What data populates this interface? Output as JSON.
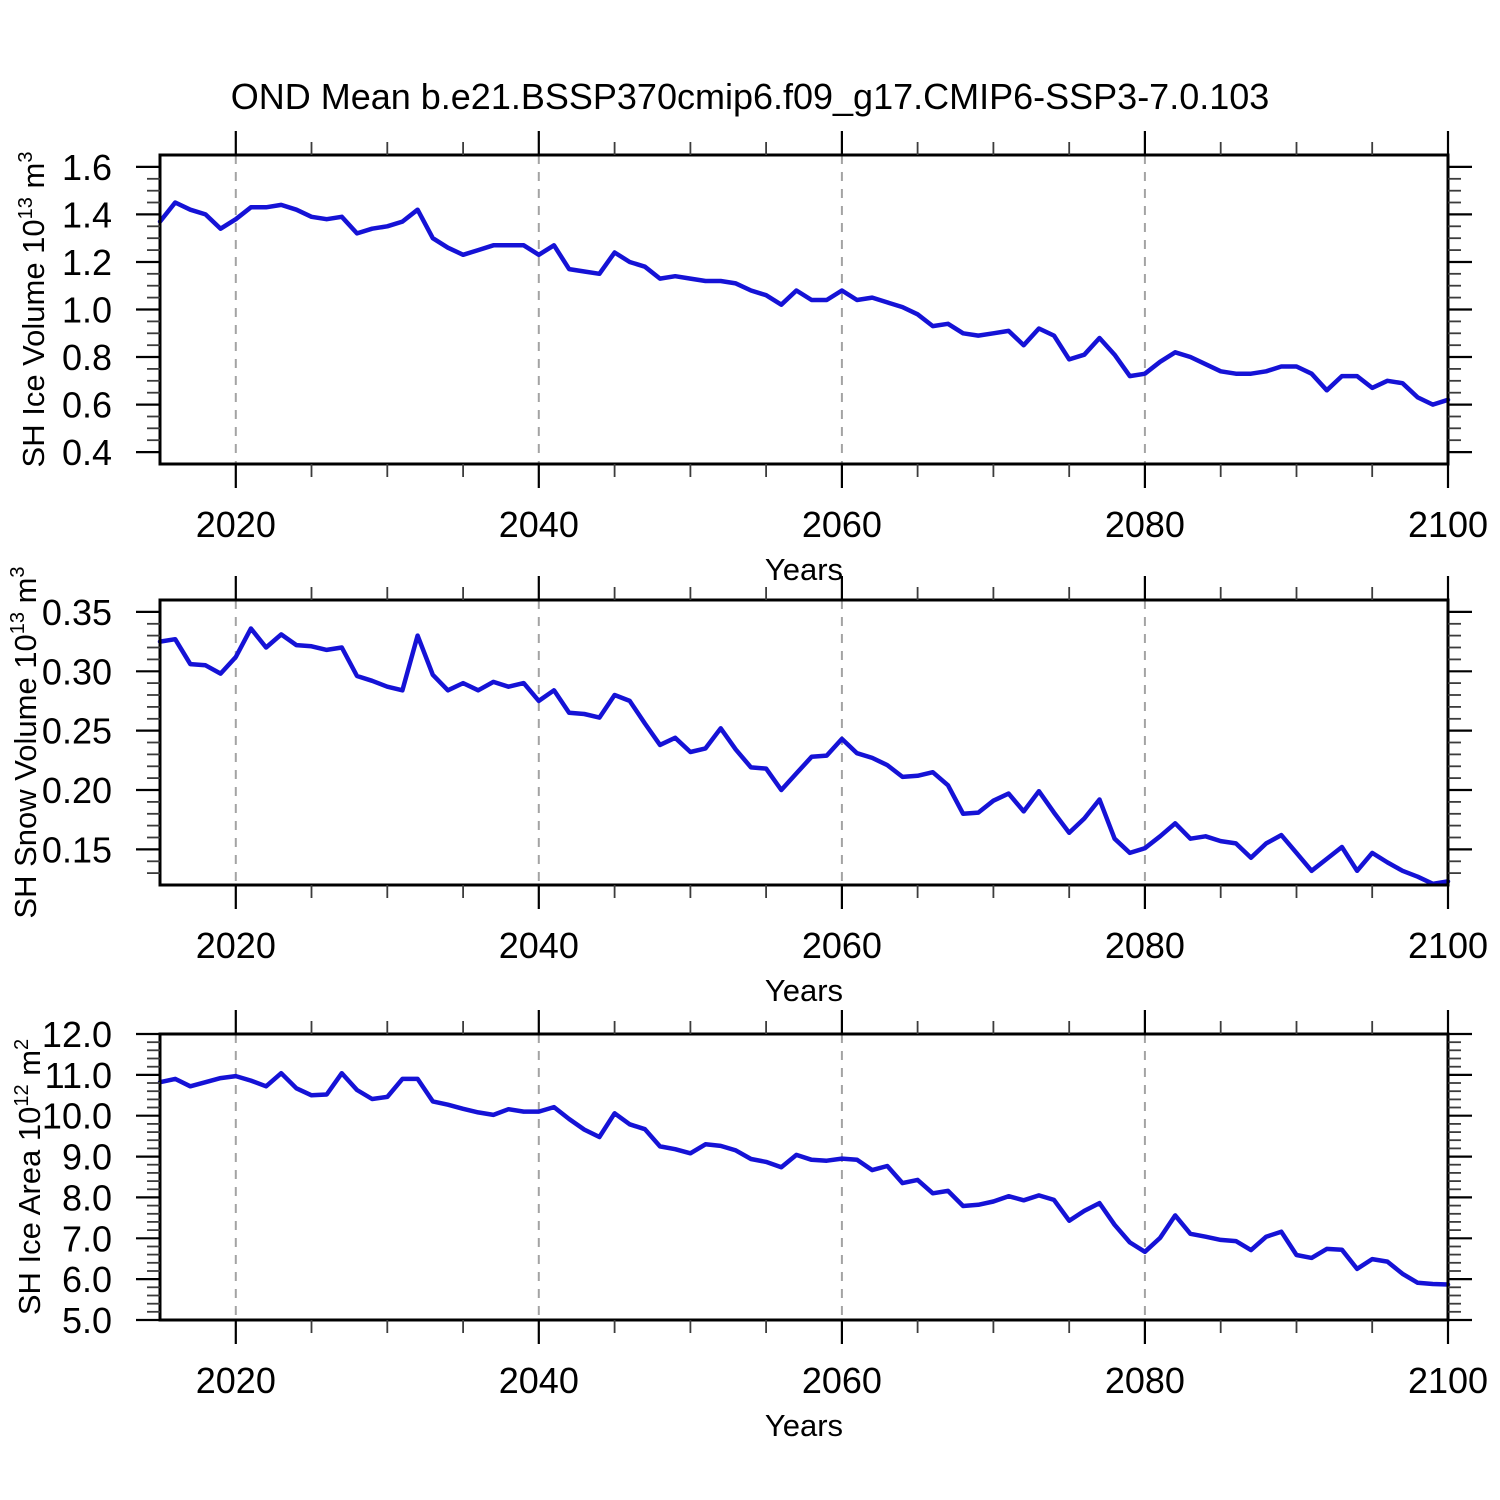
{
  "title": "OND Mean b.e21.BSSP370cmip6.f09_g17.CMIP6-SSP3-7.0.103",
  "xlabel": "Years",
  "line_color": "#1512d6",
  "grid_color": "#a3a3a3",
  "grid_years": [
    2020,
    2040,
    2060,
    2080
  ],
  "x_range": {
    "start": 2015,
    "end": 2100,
    "step": 1
  },
  "xticks": {
    "major": [
      2020,
      2040,
      2060,
      2080,
      2100
    ],
    "labels": [
      "2020",
      "2040",
      "2060",
      "2080",
      "2100"
    ],
    "minor_step": 5
  },
  "chart_data": [
    {
      "id": "sh-ice-volume",
      "type": "line",
      "ylabel": "SH Ice Volume 10^13 m^3",
      "ylabel_segments": [
        {
          "t": "SH Ice Volume 10"
        },
        {
          "t": "13",
          "sup": true
        },
        {
          "t": " m"
        },
        {
          "t": "3",
          "sup": true
        }
      ],
      "xlabel": "Years",
      "x_range": {
        "start": 2015,
        "end": 2100,
        "step": 1
      },
      "ylim": [
        0.35,
        1.65
      ],
      "yticks": {
        "values": [
          1.6,
          1.4,
          1.2,
          1.0,
          0.8,
          0.6,
          0.4
        ],
        "labels": [
          "1.6",
          "1.4",
          "1.2",
          "1.0",
          "0.8",
          "0.6",
          "0.4"
        ],
        "minor_step": 0.05
      },
      "values": [
        1.37,
        1.45,
        1.42,
        1.4,
        1.34,
        1.38,
        1.43,
        1.43,
        1.44,
        1.42,
        1.39,
        1.38,
        1.39,
        1.32,
        1.34,
        1.35,
        1.37,
        1.42,
        1.3,
        1.26,
        1.23,
        1.25,
        1.27,
        1.27,
        1.27,
        1.23,
        1.27,
        1.17,
        1.16,
        1.15,
        1.24,
        1.2,
        1.18,
        1.13,
        1.14,
        1.13,
        1.12,
        1.12,
        1.11,
        1.08,
        1.06,
        1.02,
        1.08,
        1.04,
        1.04,
        1.08,
        1.04,
        1.05,
        1.03,
        1.01,
        0.98,
        0.93,
        0.94,
        0.9,
        0.89,
        0.9,
        0.91,
        0.85,
        0.92,
        0.89,
        0.79,
        0.81,
        0.88,
        0.81,
        0.72,
        0.73,
        0.78,
        0.82,
        0.8,
        0.77,
        0.74,
        0.73,
        0.73,
        0.74,
        0.76,
        0.76,
        0.73,
        0.66,
        0.72,
        0.72,
        0.67,
        0.7,
        0.69,
        0.63,
        0.6,
        0.62
      ]
    },
    {
      "id": "sh-snow-volume",
      "type": "line",
      "ylabel": "SH Snow Volume 10^13 m^3",
      "ylabel_segments": [
        {
          "t": "SH Snow Volume 10"
        },
        {
          "t": "13",
          "sup": true
        },
        {
          "t": " m"
        },
        {
          "t": "3",
          "sup": true
        }
      ],
      "xlabel": "Years",
      "x_range": {
        "start": 2015,
        "end": 2100,
        "step": 1
      },
      "ylim": [
        0.12,
        0.36
      ],
      "yticks": {
        "values": [
          0.35,
          0.3,
          0.25,
          0.2,
          0.15
        ],
        "labels": [
          "0.35",
          "0.30",
          "0.25",
          "0.20",
          "0.15"
        ],
        "minor_step": 0.01
      },
      "values": [
        0.325,
        0.327,
        0.306,
        0.305,
        0.298,
        0.312,
        0.336,
        0.32,
        0.331,
        0.322,
        0.321,
        0.318,
        0.32,
        0.296,
        0.292,
        0.287,
        0.284,
        0.33,
        0.297,
        0.284,
        0.29,
        0.284,
        0.291,
        0.287,
        0.29,
        0.275,
        0.284,
        0.265,
        0.264,
        0.261,
        0.28,
        0.275,
        0.256,
        0.238,
        0.244,
        0.232,
        0.235,
        0.252,
        0.234,
        0.219,
        0.218,
        0.2,
        0.214,
        0.228,
        0.229,
        0.243,
        0.231,
        0.227,
        0.221,
        0.211,
        0.212,
        0.215,
        0.204,
        0.18,
        0.181,
        0.191,
        0.197,
        0.182,
        0.199,
        0.181,
        0.164,
        0.176,
        0.192,
        0.159,
        0.147,
        0.151,
        0.161,
        0.172,
        0.159,
        0.161,
        0.157,
        0.155,
        0.143,
        0.155,
        0.162,
        0.147,
        0.132,
        0.142,
        0.152,
        0.132,
        0.147,
        0.139,
        0.132,
        0.127,
        0.121,
        0.123
      ]
    },
    {
      "id": "sh-ice-area",
      "type": "line",
      "ylabel": "SH Ice Area 10^12 m^2",
      "ylabel_segments": [
        {
          "t": "SH Ice Area 10"
        },
        {
          "t": "12",
          "sup": true
        },
        {
          "t": " m"
        },
        {
          "t": "2",
          "sup": true
        }
      ],
      "xlabel": "Years",
      "x_range": {
        "start": 2015,
        "end": 2100,
        "step": 1
      },
      "ylim": [
        5.0,
        12.0
      ],
      "yticks": {
        "values": [
          12.0,
          11.0,
          10.0,
          9.0,
          8.0,
          7.0,
          6.0,
          5.0
        ],
        "labels": [
          "12.0",
          "11.0",
          "10.0",
          "9.0",
          "8.0",
          "7.0",
          "6.0",
          "5.0"
        ],
        "minor_step": 0.2
      },
      "values": [
        10.82,
        10.9,
        10.72,
        10.82,
        10.92,
        10.97,
        10.86,
        10.72,
        11.04,
        10.67,
        10.5,
        10.52,
        11.04,
        10.63,
        10.41,
        10.46,
        10.9,
        10.9,
        10.35,
        10.27,
        10.17,
        10.08,
        10.02,
        10.16,
        10.1,
        10.1,
        10.21,
        9.92,
        9.66,
        9.48,
        10.06,
        9.79,
        9.67,
        9.25,
        9.18,
        9.08,
        9.3,
        9.26,
        9.15,
        8.94,
        8.87,
        8.74,
        9.04,
        8.92,
        8.9,
        8.95,
        8.92,
        8.67,
        8.77,
        8.35,
        8.43,
        8.1,
        8.16,
        7.79,
        7.82,
        7.9,
        8.03,
        7.93,
        8.05,
        7.94,
        7.43,
        7.67,
        7.86,
        7.33,
        6.9,
        6.67,
        7.01,
        7.56,
        7.11,
        7.04,
        6.96,
        6.93,
        6.71,
        7.04,
        7.16,
        6.59,
        6.52,
        6.74,
        6.72,
        6.25,
        6.49,
        6.43,
        6.13,
        5.91,
        5.88,
        5.87
      ]
    }
  ]
}
